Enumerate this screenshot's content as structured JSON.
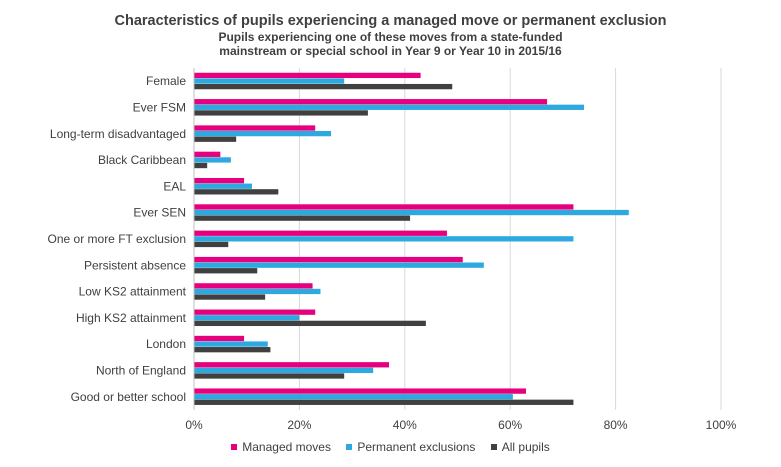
{
  "chart_data": {
    "type": "bar",
    "orientation": "horizontal",
    "title": "Characteristics of pupils experiencing a managed move or permanent exclusion",
    "subtitle_lines": [
      "Pupils experiencing one of these moves from a state-funded",
      "mainstream or special school in Year 9 or Year 10 in 2015/16"
    ],
    "categories": [
      "Female",
      "Ever FSM",
      "Long-term disadvantaged",
      "Black Caribbean",
      "EAL",
      "Ever SEN",
      "One or more FT exclusion",
      "Persistent absence",
      "Low KS2 attainment",
      "High KS2 attainment",
      "London",
      "North of England",
      "Good or better school"
    ],
    "series": [
      {
        "name": "Managed moves",
        "color": "#E6007E",
        "values": [
          43,
          67,
          23,
          5,
          9.5,
          72,
          48,
          51,
          22.5,
          23,
          9.5,
          37,
          63
        ]
      },
      {
        "name": "Permanent exclusions",
        "color": "#2EA9DF",
        "values": [
          28.5,
          74,
          26,
          7,
          11,
          82.5,
          72,
          55,
          24,
          20,
          14,
          34,
          60.5
        ]
      },
      {
        "name": "All pupils",
        "color": "#404040",
        "values": [
          49,
          33,
          8,
          2.5,
          16,
          41,
          6.5,
          12,
          13.5,
          44,
          14.5,
          28.5,
          72
        ]
      }
    ],
    "xlim": [
      0,
      100
    ],
    "x_ticks": [
      "0%",
      "20%",
      "40%",
      "60%",
      "80%",
      "100%"
    ],
    "grid": "vertical",
    "legend": "bottom"
  }
}
